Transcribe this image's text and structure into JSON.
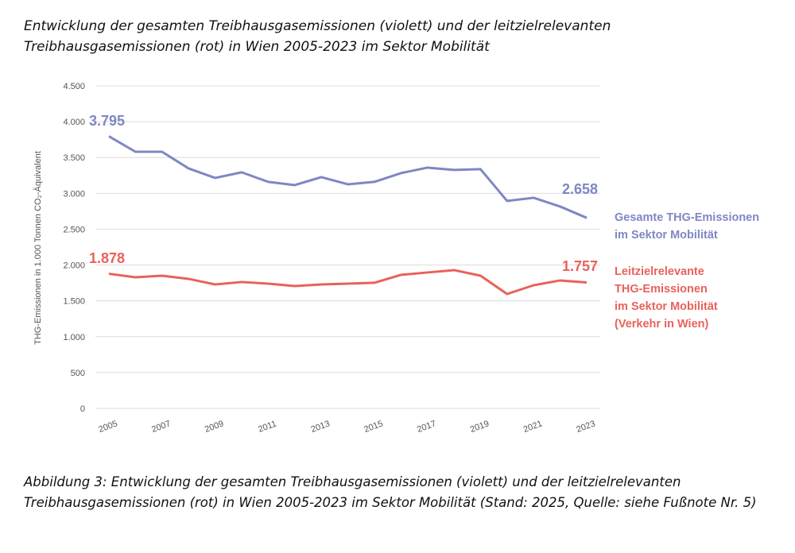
{
  "title": "Entwicklung der gesamten Treibhausgasemissionen (violett) und der leitzielrelevanten Treibhausgasemissionen (rot) in Wien 2005-2023 im Sektor Mobilität",
  "caption": "Abbildung 3: Entwicklung der gesamten Treibhausgasemissionen (violett) und der leitzielrelevanten Treibhausgasemissionen (rot) in Wien 2005-2023 im Sektor Mobilität (Stand: 2025, Quelle: siehe Fußnote Nr. 5)",
  "chart_data": {
    "type": "line",
    "ylabel": "THG-Emissionen in 1.000 Tonnen CO₂-Äquivalent",
    "xlabel": "",
    "ylim": [
      0,
      4500
    ],
    "yticks": [
      0,
      500,
      1000,
      1500,
      2000,
      2500,
      3000,
      3500,
      4000,
      4500
    ],
    "ytick_labels": [
      "0",
      "500",
      "1.000",
      "1.500",
      "2.000",
      "2.500",
      "3.000",
      "3.500",
      "4.000",
      "4.500"
    ],
    "x": [
      2005,
      2006,
      2007,
      2008,
      2009,
      2010,
      2011,
      2012,
      2013,
      2014,
      2015,
      2016,
      2017,
      2018,
      2019,
      2020,
      2021,
      2022,
      2023
    ],
    "xtick_labels": [
      "2005",
      "2007",
      "2009",
      "2011",
      "2013",
      "2015",
      "2017",
      "2019",
      "2021",
      "2023"
    ],
    "grid": "horizontal",
    "legend_placement": "right",
    "series": [
      {
        "name": "Gesamte THG-Emissionen im Sektor Mobilität",
        "legend_lines": [
          "Gesamte THG-Emissionen",
          "im Sektor Mobilität"
        ],
        "color": "#7f87c3",
        "values": [
          3795,
          3580,
          3580,
          3348,
          3215,
          3293,
          3160,
          3115,
          3226,
          3126,
          3160,
          3282,
          3359,
          3326,
          3337,
          2894,
          2938,
          2816,
          2658
        ],
        "start_label": "3.795",
        "end_label": "2.658"
      },
      {
        "name": "Leitzielrelevante THG-Emissionen im Sektor Mobilität (Verkehr in Wien)",
        "legend_lines": [
          "Leitzielrelevante",
          "THG-Emissionen",
          "im Sektor Mobilität",
          "(Verkehr in Wien)"
        ],
        "color": "#e8625b",
        "values": [
          1878,
          1829,
          1851,
          1807,
          1729,
          1763,
          1740,
          1707,
          1729,
          1740,
          1752,
          1863,
          1896,
          1929,
          1851,
          1596,
          1718,
          1785,
          1757
        ],
        "start_label": "1.878",
        "end_label": "1.757"
      }
    ]
  }
}
